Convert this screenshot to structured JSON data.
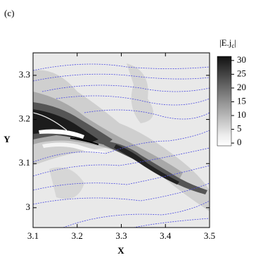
{
  "chart_data": {
    "type": "contour",
    "panel_label": "(c)",
    "x_label": "X",
    "y_label": "Y",
    "xlim": [
      3.1,
      3.5
    ],
    "xticks": [
      3.1,
      3.2,
      3.3,
      3.4,
      3.5
    ],
    "ylim": [
      2.955,
      3.351
    ],
    "yticks": [
      3,
      3.1,
      3.2,
      3.3
    ],
    "colorbar_title": [
      "|E.j",
      "c",
      "|"
    ],
    "colorbar_lim": [
      -1,
      31.5
    ],
    "colorbar_ticks": [
      0,
      5,
      10,
      15,
      20,
      25,
      30
    ],
    "line_color": "#4a4ae0"
  }
}
